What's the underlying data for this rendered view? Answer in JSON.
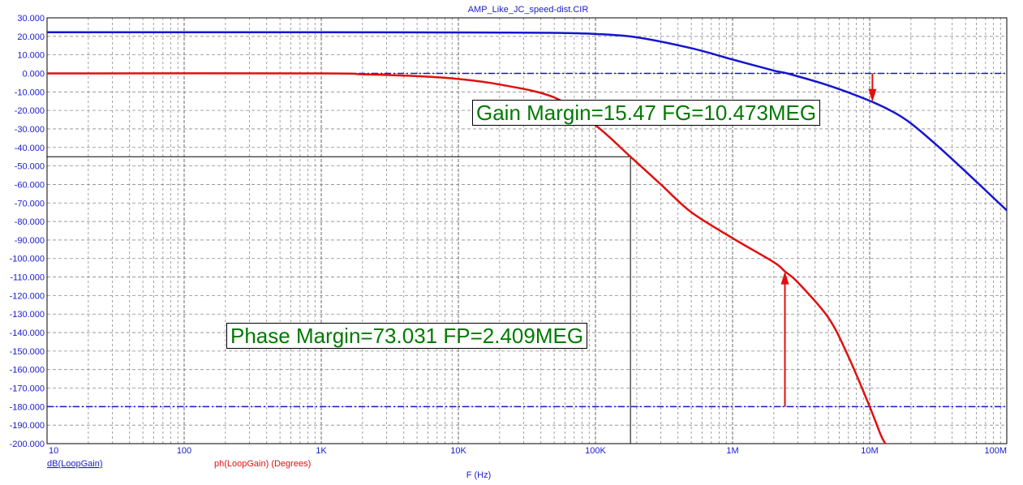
{
  "chart_data": {
    "type": "line",
    "title": "AMP_Like_JC_speed-dist.CIR",
    "xlabel": "F (Hz)",
    "xscale": "log",
    "xlim": [
      10,
      100000000
    ],
    "ylim": [
      -200,
      30
    ],
    "grid": true,
    "x_tick_labels": [
      "10",
      "100",
      "1K",
      "10K",
      "100K",
      "1M",
      "10M",
      "100M"
    ],
    "y_tick_labels": [
      "30.000",
      "20.000",
      "10.000",
      "0.000",
      "-10.000",
      "-20.000",
      "-30.000",
      "-40.000",
      "-50.000",
      "-60.000",
      "-70.000",
      "-80.000",
      "-90.000",
      "-100.000",
      "-110.000",
      "-120.000",
      "-130.000",
      "-140.000",
      "-150.000",
      "-160.000",
      "-170.000",
      "-180.000",
      "-190.000",
      "-200.000"
    ],
    "series": [
      {
        "name": "dB(LoopGain)",
        "color": "#1515d0",
        "x": [
          10,
          1000,
          10000,
          50000,
          100000,
          200000,
          500000,
          1000000,
          2000000,
          2500000,
          5000000,
          10000000,
          15000000,
          20000000,
          30000000,
          50000000,
          100000000
        ],
        "y": [
          22.2,
          22.2,
          22.1,
          21.9,
          21.3,
          19.5,
          13.6,
          7.5,
          1.5,
          0.0,
          -6.5,
          -14.8,
          -21.0,
          -27.0,
          -38.0,
          -53.0,
          -74.0
        ]
      },
      {
        "name": "ph(LoopGain) (Degrees)",
        "color": "#e01010",
        "x": [
          10,
          1000,
          2000,
          5000,
          10000,
          20000,
          50000,
          100000,
          180000,
          300000,
          500000,
          1000000,
          2000000,
          2409000,
          3000000,
          5000000,
          7000000,
          10000000,
          12000000,
          13000000
        ],
        "y": [
          0,
          0,
          -0.5,
          -1.5,
          -3.0,
          -6.0,
          -13.0,
          -28.0,
          -45.0,
          -60.0,
          -75.0,
          -89.0,
          -102.0,
          -107.0,
          -113.0,
          -132.0,
          -153.0,
          -180.0,
          -195.0,
          -200.0
        ]
      }
    ],
    "reference_lines": [
      {
        "y": 0,
        "color": "#1515d0",
        "style": "dash-dot"
      },
      {
        "y": -180,
        "color": "#1515d0",
        "style": "dash-dot"
      }
    ],
    "cursor_lines": {
      "x": 180000,
      "y": -45,
      "color": "#000000"
    },
    "arrows": [
      {
        "x": 10473000,
        "from_y": 0,
        "to_y": -15.47,
        "color": "#e01010"
      },
      {
        "x": 2409000,
        "from_y": -180,
        "to_y": -106.969,
        "color": "#e01010"
      }
    ],
    "annotations": {
      "gain_margin": "Gain Margin=15.47 FG=10.473MEG",
      "phase_margin": "Phase Margin=73.031 FP=2.409MEG"
    },
    "legend": [
      {
        "label": "dB(LoopGain)",
        "color": "#1a1ad0"
      },
      {
        "label": "ph(LoopGain) (Degrees)",
        "color": "#e01010"
      }
    ]
  }
}
